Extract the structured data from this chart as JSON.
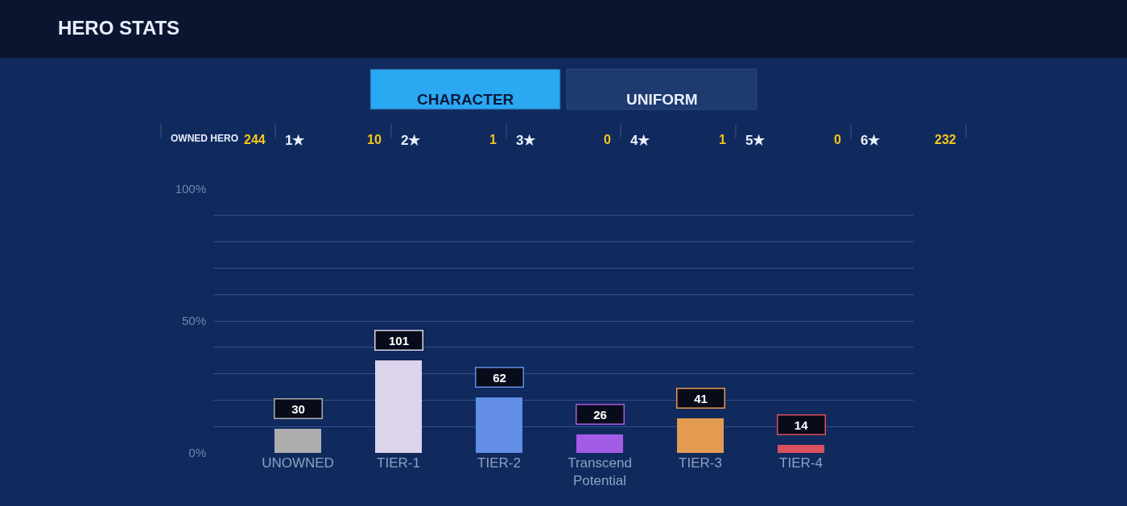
{
  "chart_data": {
    "type": "bar",
    "title": "HERO STATS",
    "categories": [
      "UNOWNED",
      "TIER-1",
      "TIER-2",
      "Transcend Potential",
      "TIER-3",
      "TIER-4"
    ],
    "values": [
      9,
      35,
      21,
      7,
      13,
      3
    ],
    "colors": [
      "#adadad",
      "#dcd4ea",
      "#628ee6",
      "#a35ce6",
      "#e39b52",
      "#d9505f"
    ],
    "ylim": [
      0,
      100
    ],
    "yticks": [
      {
        "value": 0,
        "label": "0%"
      },
      {
        "value": 10,
        "label": null
      },
      {
        "value": 20,
        "label": null
      },
      {
        "value": 30,
        "label": null
      },
      {
        "value": 40,
        "label": null
      },
      {
        "value": 50,
        "label": "50%"
      },
      {
        "value": 60,
        "label": null
      },
      {
        "value": 70,
        "label": null
      },
      {
        "value": 80,
        "label": null
      },
      {
        "value": 90,
        "label": null
      },
      {
        "value": 100,
        "label": "100%"
      }
    ],
    "grid": "y",
    "annotations": [
      "CHARACTER",
      "UNIFORM",
      "OWNED HERO",
      "244",
      "1★",
      "10",
      "2★",
      "1",
      "3★",
      "0",
      "4★",
      "1",
      "5★",
      "0",
      "6★",
      "232",
      {
        "text": "30",
        "x": "UNOWNED",
        "y": 9
      },
      {
        "text": "101",
        "x": "TIER-1",
        "y": 35
      },
      {
        "text": "62",
        "x": "TIER-2",
        "y": 21
      },
      {
        "text": "26",
        "x": "Transcend Potential",
        "y": 7
      },
      {
        "text": "41",
        "x": "TIER-3",
        "y": 13
      },
      {
        "text": "14",
        "x": "TIER-4",
        "y": 3
      }
    ]
  }
}
